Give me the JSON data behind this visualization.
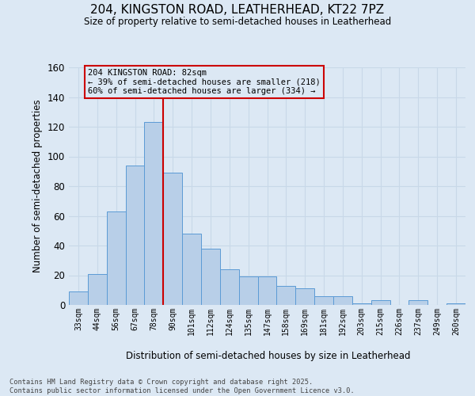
{
  "title_line1": "204, KINGSTON ROAD, LEATHERHEAD, KT22 7PZ",
  "title_line2": "Size of property relative to semi-detached houses in Leatherhead",
  "xlabel": "Distribution of semi-detached houses by size in Leatherhead",
  "ylabel": "Number of semi-detached properties",
  "categories": [
    "33sqm",
    "44sqm",
    "56sqm",
    "67sqm",
    "78sqm",
    "90sqm",
    "101sqm",
    "112sqm",
    "124sqm",
    "135sqm",
    "147sqm",
    "158sqm",
    "169sqm",
    "181sqm",
    "192sqm",
    "203sqm",
    "215sqm",
    "226sqm",
    "237sqm",
    "249sqm",
    "260sqm"
  ],
  "values": [
    9,
    21,
    63,
    94,
    123,
    89,
    48,
    38,
    24,
    19,
    19,
    13,
    11,
    6,
    6,
    1,
    3,
    0,
    3,
    0,
    1
  ],
  "bar_color": "#b8cfe8",
  "bar_edge_color": "#5b9bd5",
  "vline_x": 4.5,
  "vline_color": "#cc0000",
  "annotation_title": "204 KINGSTON ROAD: 82sqm",
  "annotation_line1": "← 39% of semi-detached houses are smaller (218)",
  "annotation_line2": "60% of semi-detached houses are larger (334) →",
  "annotation_box_edgecolor": "#cc0000",
  "ylim": [
    0,
    160
  ],
  "yticks": [
    0,
    20,
    40,
    60,
    80,
    100,
    120,
    140,
    160
  ],
  "grid_color": "#c8d8e8",
  "background_color": "#dce8f4",
  "footer_line1": "Contains HM Land Registry data © Crown copyright and database right 2025.",
  "footer_line2": "Contains public sector information licensed under the Open Government Licence v3.0."
}
